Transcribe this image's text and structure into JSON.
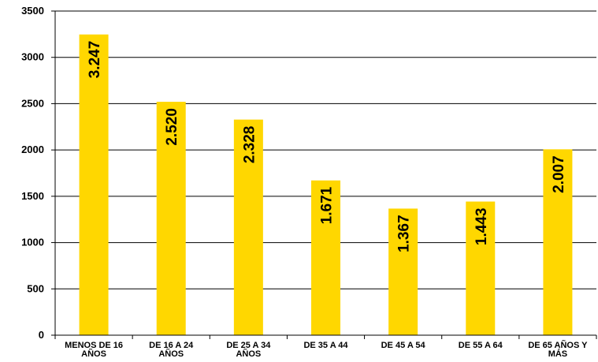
{
  "chart_data": {
    "type": "bar",
    "title": "",
    "xlabel": "",
    "ylabel": "",
    "categories": [
      [
        "MENOS DE 16",
        "AÑOS"
      ],
      [
        "DE 16 A 24",
        "AÑOS"
      ],
      [
        "DE 25 A 34",
        "AÑOS"
      ],
      [
        "DE 35 A 44"
      ],
      [
        "DE 45 A 54"
      ],
      [
        "DE 55 A 64"
      ],
      [
        "DE 65 AÑOS Y",
        "MÁS"
      ]
    ],
    "values": [
      3247,
      2520,
      2328,
      1671,
      1367,
      1443,
      2007
    ],
    "data_labels": [
      "3.247",
      "2.520",
      "2.328",
      "1.671",
      "1.367",
      "1.443",
      "2.007"
    ],
    "ylim": [
      0,
      3500
    ],
    "yticks": [
      0,
      500,
      1000,
      1500,
      2000,
      2500,
      3000,
      3500
    ],
    "ytick_labels": [
      "0",
      "500",
      "1000",
      "1500",
      "2000",
      "2500",
      "3000",
      "3500"
    ],
    "grid": true,
    "legend": "none",
    "colors": {
      "bar": "#FFD700",
      "grid": "#000000",
      "axis": "#000000",
      "text": "#000000",
      "background": "#FFFFFF"
    }
  }
}
